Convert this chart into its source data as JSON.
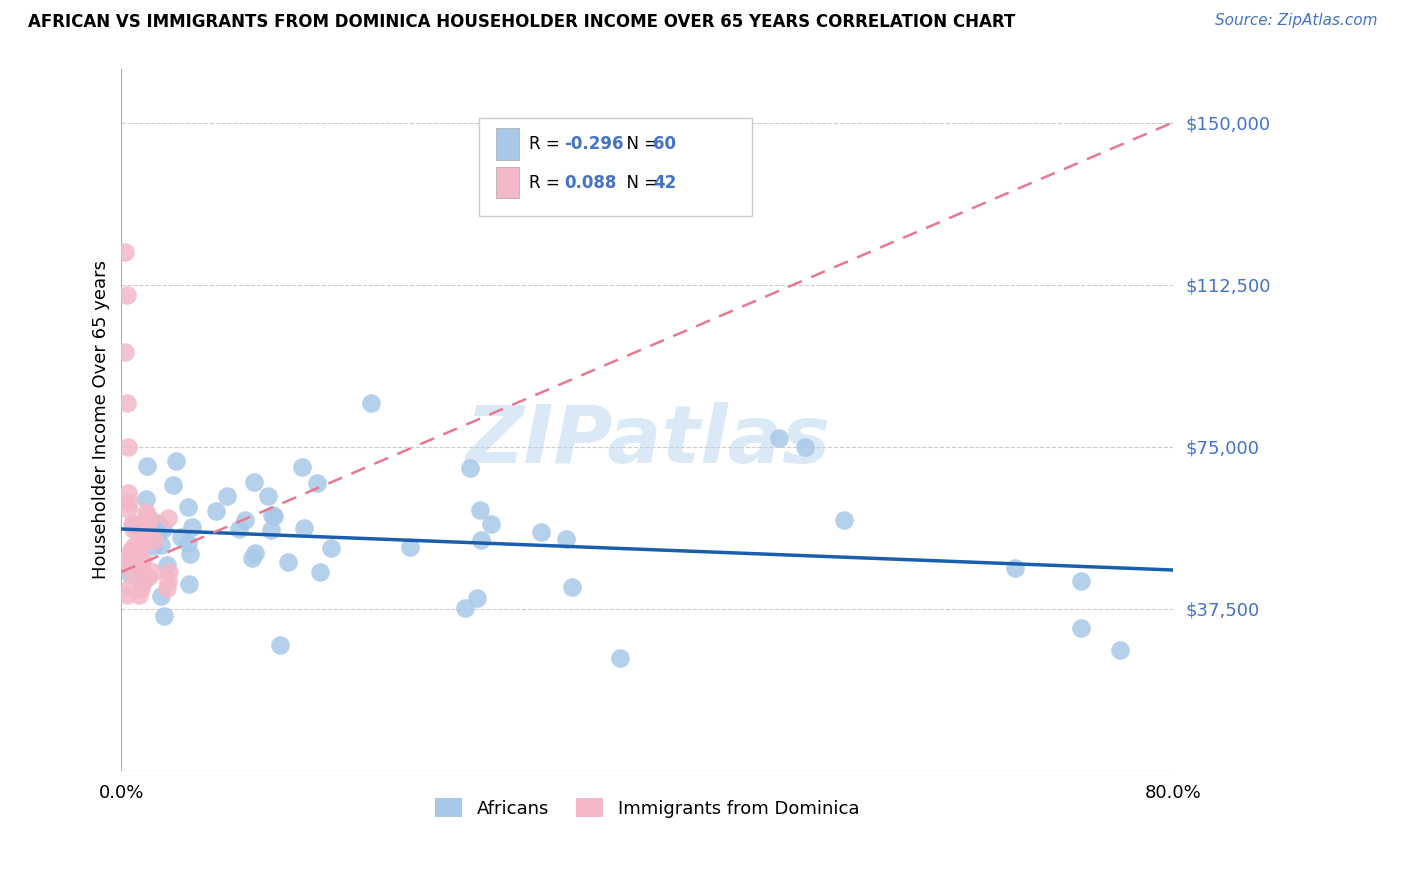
{
  "title": "AFRICAN VS IMMIGRANTS FROM DOMINICA HOUSEHOLDER INCOME OVER 65 YEARS CORRELATION CHART",
  "source": "Source: ZipAtlas.com",
  "ylabel": "Householder Income Over 65 years",
  "xlim": [
    0.0,
    0.8
  ],
  "ylim": [
    0,
    162500
  ],
  "yticks": [
    0,
    37500,
    75000,
    112500,
    150000
  ],
  "ytick_labels": [
    "",
    "$37,500",
    "$75,000",
    "$112,500",
    "$150,000"
  ],
  "xtick_labels": [
    "0.0%",
    "80.0%"
  ],
  "legend_r_african": "-0.296",
  "legend_n_african": "60",
  "legend_r_dominica": "0.088",
  "legend_n_dominica": "42",
  "color_african": "#a8c8e8",
  "color_dominica": "#f4b8c8",
  "trendline_african_color": "#1a5fad",
  "trendline_dominica_color": "#e87890",
  "watermark": "ZIPatlas",
  "bg_color": "#ffffff",
  "grid_color": "#cccccc",
  "ytick_color": "#4472c4",
  "source_color": "#4472c4"
}
